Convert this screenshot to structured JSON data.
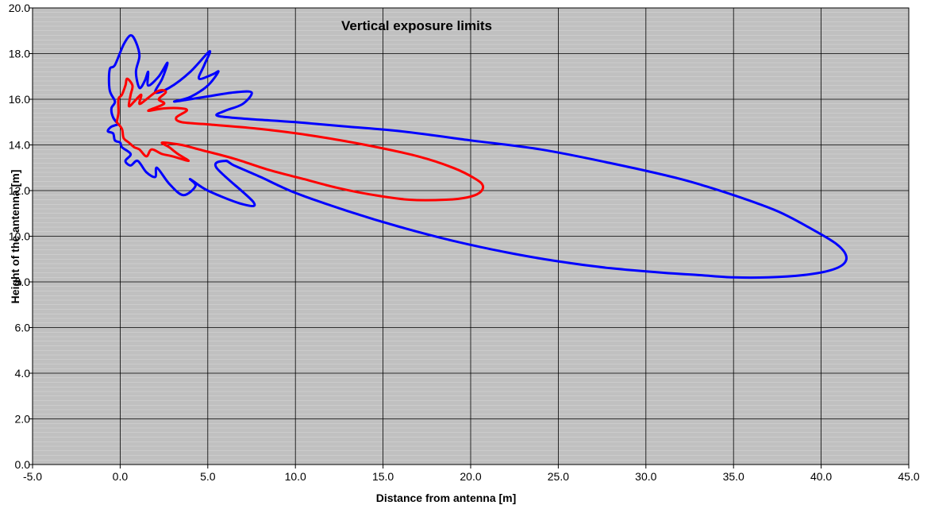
{
  "chart_data": {
    "type": "line",
    "title": "Vertical exposure limits",
    "xlabel": "Distance from antenna [m]",
    "ylabel": "Height of the antenna [m]",
    "xlim": [
      -5.0,
      45.0
    ],
    "ylim": [
      0.0,
      20.0
    ],
    "x_ticks": [
      "-5.0",
      "0.0",
      "5.0",
      "10.0",
      "15.0",
      "20.0",
      "25.0",
      "30.0",
      "35.0",
      "40.0",
      "45.0"
    ],
    "y_ticks": [
      "0.0",
      "2.0",
      "4.0",
      "6.0",
      "8.0",
      "10.0",
      "12.0",
      "14.0",
      "16.0",
      "18.0",
      "20.0"
    ],
    "grid": true,
    "minor_grid": true,
    "plot_background": "#c0c0c0",
    "legend": "none",
    "series": [
      {
        "color": "#0000ff",
        "points": [
          [
            -0.1,
            14.9
          ],
          [
            -0.4,
            15.2
          ],
          [
            -0.5,
            15.6
          ],
          [
            -0.3,
            15.9
          ],
          [
            -0.6,
            16.4
          ],
          [
            -0.6,
            17.3
          ],
          [
            -0.3,
            17.5
          ],
          [
            0.2,
            18.4
          ],
          [
            0.6,
            18.8
          ],
          [
            0.9,
            18.5
          ],
          [
            1.1,
            17.9
          ],
          [
            0.9,
            17.2
          ],
          [
            1.1,
            16.5
          ],
          [
            1.4,
            16.8
          ],
          [
            1.6,
            17.2
          ],
          [
            1.6,
            16.6
          ],
          [
            2.2,
            17.0
          ],
          [
            2.7,
            17.6
          ],
          [
            2.4,
            16.9
          ],
          [
            2.0,
            16.3
          ],
          [
            2.8,
            16.5
          ],
          [
            4.0,
            17.2
          ],
          [
            5.1,
            18.1
          ],
          [
            4.8,
            17.5
          ],
          [
            4.5,
            16.9
          ],
          [
            5.3,
            17.1
          ],
          [
            5.6,
            17.2
          ],
          [
            5.0,
            16.6
          ],
          [
            4.0,
            16.1
          ],
          [
            3.1,
            15.9
          ],
          [
            4.8,
            16.1
          ],
          [
            6.5,
            16.3
          ],
          [
            7.5,
            16.3
          ],
          [
            7.0,
            15.8
          ],
          [
            6.0,
            15.5
          ],
          [
            5.5,
            15.3
          ],
          [
            6.3,
            15.2
          ],
          [
            8.0,
            15.1
          ],
          [
            10.0,
            15.0
          ],
          [
            13.0,
            14.8
          ],
          [
            16.0,
            14.6
          ],
          [
            20.0,
            14.2
          ],
          [
            24.0,
            13.8
          ],
          [
            28.0,
            13.2
          ],
          [
            32.0,
            12.5
          ],
          [
            35.0,
            11.8
          ],
          [
            37.5,
            11.1
          ],
          [
            39.5,
            10.3
          ],
          [
            40.8,
            9.7
          ],
          [
            41.4,
            9.2
          ],
          [
            41.3,
            8.8
          ],
          [
            40.5,
            8.5
          ],
          [
            39.0,
            8.3
          ],
          [
            37.0,
            8.2
          ],
          [
            35.0,
            8.2
          ],
          [
            33.0,
            8.3
          ],
          [
            31.0,
            8.4
          ],
          [
            28.0,
            8.6
          ],
          [
            25.0,
            8.9
          ],
          [
            22.0,
            9.3
          ],
          [
            19.0,
            9.8
          ],
          [
            16.0,
            10.4
          ],
          [
            13.0,
            11.1
          ],
          [
            10.0,
            11.9
          ],
          [
            8.0,
            12.6
          ],
          [
            6.5,
            13.1
          ],
          [
            6.0,
            13.3
          ],
          [
            5.5,
            13.0
          ],
          [
            7.6,
            11.5
          ],
          [
            7.0,
            11.4
          ],
          [
            5.0,
            12.0
          ],
          [
            4.0,
            12.5
          ],
          [
            4.3,
            12.2
          ],
          [
            3.6,
            11.8
          ],
          [
            2.8,
            12.3
          ],
          [
            2.1,
            13.0
          ],
          [
            2.0,
            12.6
          ],
          [
            1.5,
            12.8
          ],
          [
            1.0,
            13.3
          ],
          [
            0.6,
            13.1
          ],
          [
            0.3,
            13.3
          ],
          [
            0.6,
            13.6
          ],
          [
            0.1,
            13.9
          ],
          [
            0.0,
            14.1
          ],
          [
            -0.3,
            14.2
          ],
          [
            -0.4,
            14.5
          ],
          [
            -0.7,
            14.6
          ],
          [
            -0.5,
            14.8
          ],
          [
            -0.1,
            14.9
          ]
        ]
      },
      {
        "color": "#ff0000",
        "points": [
          [
            -0.2,
            15.0
          ],
          [
            -0.1,
            15.4
          ],
          [
            -0.1,
            16.0
          ],
          [
            0.1,
            16.2
          ],
          [
            0.3,
            16.6
          ],
          [
            0.4,
            16.9
          ],
          [
            0.7,
            16.6
          ],
          [
            0.6,
            16.2
          ],
          [
            0.5,
            15.7
          ],
          [
            0.8,
            15.9
          ],
          [
            1.2,
            16.2
          ],
          [
            1.1,
            15.8
          ],
          [
            1.5,
            16.0
          ],
          [
            2.0,
            16.3
          ],
          [
            2.4,
            16.4
          ],
          [
            2.6,
            16.3
          ],
          [
            2.2,
            16.0
          ],
          [
            2.5,
            15.8
          ],
          [
            1.6,
            15.5
          ],
          [
            2.5,
            15.6
          ],
          [
            3.5,
            15.6
          ],
          [
            3.8,
            15.5
          ],
          [
            3.2,
            15.2
          ],
          [
            3.5,
            15.0
          ],
          [
            5.0,
            14.9
          ],
          [
            8.0,
            14.7
          ],
          [
            11.0,
            14.4
          ],
          [
            14.0,
            14.0
          ],
          [
            17.0,
            13.5
          ],
          [
            19.0,
            13.0
          ],
          [
            20.3,
            12.5
          ],
          [
            20.7,
            12.2
          ],
          [
            20.5,
            11.9
          ],
          [
            19.8,
            11.7
          ],
          [
            18.6,
            11.6
          ],
          [
            16.5,
            11.6
          ],
          [
            14.5,
            11.8
          ],
          [
            12.5,
            12.1
          ],
          [
            10.5,
            12.5
          ],
          [
            8.5,
            12.9
          ],
          [
            6.5,
            13.4
          ],
          [
            4.5,
            13.8
          ],
          [
            3.5,
            14.0
          ],
          [
            2.4,
            14.1
          ],
          [
            2.8,
            13.9
          ],
          [
            3.3,
            13.6
          ],
          [
            3.9,
            13.3
          ],
          [
            3.0,
            13.5
          ],
          [
            2.4,
            13.6
          ],
          [
            1.8,
            13.8
          ],
          [
            1.5,
            13.5
          ],
          [
            1.1,
            13.8
          ],
          [
            0.8,
            13.9
          ],
          [
            0.5,
            14.1
          ],
          [
            0.2,
            14.3
          ],
          [
            0.1,
            14.7
          ],
          [
            -0.2,
            15.0
          ]
        ]
      }
    ]
  }
}
